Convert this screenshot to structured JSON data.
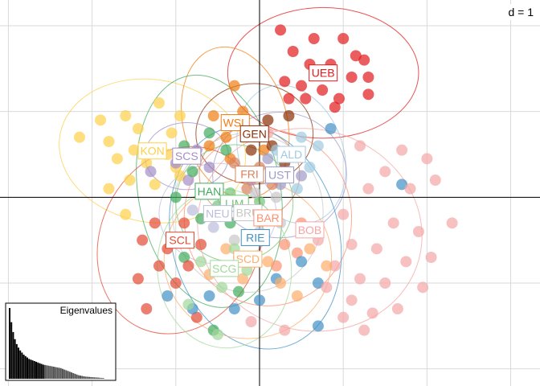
{
  "chart_data": {
    "type": "scatter",
    "title": "",
    "xlabel": "",
    "ylabel": "",
    "grid_label": "d = 1",
    "grid": true,
    "xlim": [
      -3.1,
      3.35
    ],
    "ylim": [
      -2.2,
      2.3
    ],
    "groups": [
      {
        "name": "UEB",
        "color": "#e31a1c",
        "centroid": [
          0.76,
          1.45
        ],
        "ellipse": {
          "rx": 1.14,
          "ry": 0.78,
          "angle": 0
        },
        "points": [
          [
            0.25,
            1.95
          ],
          [
            0.65,
            1.85
          ],
          [
            1.0,
            1.85
          ],
          [
            1.15,
            1.65
          ],
          [
            1.25,
            1.6
          ],
          [
            0.4,
            1.7
          ],
          [
            0.6,
            1.55
          ],
          [
            0.85,
            1.55
          ],
          [
            1.1,
            1.4
          ],
          [
            1.3,
            1.4
          ],
          [
            0.3,
            1.35
          ],
          [
            0.5,
            1.3
          ],
          [
            0.75,
            1.25
          ],
          [
            0.95,
            1.15
          ],
          [
            1.3,
            1.2
          ],
          [
            0.35,
            1.15
          ],
          [
            0.55,
            1.15
          ],
          [
            0.9,
            1.05
          ]
        ]
      },
      {
        "name": "KON",
        "color": "#fdd049",
        "centroid": [
          -1.28,
          0.54
        ],
        "ellipse": {
          "rx": 1.12,
          "ry": 0.85,
          "angle": -10
        },
        "points": [
          [
            -1.9,
            0.9
          ],
          [
            -1.6,
            0.95
          ],
          [
            -1.2,
            1.1
          ],
          [
            -2.15,
            0.7
          ],
          [
            -1.8,
            0.65
          ],
          [
            -1.45,
            0.8
          ],
          [
            -1.05,
            0.75
          ],
          [
            -0.95,
            0.95
          ],
          [
            -1.7,
            0.45
          ],
          [
            -1.35,
            0.4
          ],
          [
            -1.1,
            0.5
          ],
          [
            -1.55,
            0.2
          ],
          [
            -1.25,
            0.15
          ],
          [
            -0.95,
            0.25
          ],
          [
            -1.8,
            0.1
          ],
          [
            -1.0,
            0.35
          ],
          [
            -1.5,
            0.55
          ],
          [
            -1.6,
            -0.2
          ]
        ]
      },
      {
        "name": "WSL",
        "color": "#f07e13",
        "centroid": [
          -0.29,
          0.87
        ],
        "ellipse": {
          "rx": 0.62,
          "ry": 0.92,
          "angle": 15
        },
        "points": [
          [
            -0.3,
            1.3
          ],
          [
            -0.55,
            0.95
          ],
          [
            -0.2,
            1.0
          ],
          [
            -0.4,
            0.7
          ],
          [
            -0.1,
            0.75
          ],
          [
            -0.35,
            0.45
          ],
          [
            -0.6,
            0.6
          ],
          [
            0.05,
            0.55
          ]
        ]
      },
      {
        "name": "GEN",
        "color": "#8c2d04",
        "centroid": [
          -0.06,
          0.74
        ],
        "ellipse": {
          "rx": 0.7,
          "ry": 0.6,
          "angle": 0
        },
        "points": [
          [
            -0.25,
            0.85
          ],
          [
            0.1,
            0.9
          ],
          [
            0.35,
            0.95
          ],
          [
            -0.1,
            0.55
          ],
          [
            0.15,
            0.6
          ],
          [
            0.3,
            0.4
          ]
        ]
      },
      {
        "name": "SCS",
        "color": "#a48fc7",
        "centroid": [
          -0.87,
          0.48
        ],
        "ellipse": {
          "rx": 0.5,
          "ry": 0.4,
          "angle": 0
        },
        "points": [
          [
            -1.3,
            0.3
          ],
          [
            -1.0,
            0.4
          ],
          [
            -0.75,
            0.55
          ],
          [
            -0.85,
            0.2
          ],
          [
            -0.6,
            0.35
          ]
        ]
      },
      {
        "name": "ALD",
        "color": "#9ecae1",
        "centroid": [
          0.38,
          0.5
        ],
        "ellipse": {
          "rx": 0.62,
          "ry": 0.85,
          "angle": 20
        },
        "points": [
          [
            0.5,
            0.7
          ],
          [
            0.7,
            0.6
          ],
          [
            0.2,
            0.55
          ],
          [
            0.35,
            0.3
          ],
          [
            0.6,
            0.35
          ],
          [
            0.45,
            0.1
          ]
        ]
      },
      {
        "name": "UST",
        "color": "#9e9ac8",
        "centroid": [
          0.24,
          0.26
        ],
        "ellipse": {
          "rx": 0.8,
          "ry": 0.75,
          "angle": 0
        },
        "points": [
          [
            0.1,
            0.45
          ],
          [
            0.4,
            0.5
          ],
          [
            0.25,
            0.15
          ],
          [
            -0.1,
            0.2
          ],
          [
            0.5,
            0.25
          ]
        ]
      },
      {
        "name": "FRI",
        "color": "#d9825b",
        "centroid": [
          -0.12,
          0.27
        ],
        "ellipse": {
          "rx": 0.6,
          "ry": 0.55,
          "angle": 0
        },
        "points": [
          [
            -0.3,
            0.4
          ],
          [
            0.0,
            0.35
          ],
          [
            -0.15,
            0.1
          ],
          [
            0.15,
            0.15
          ]
        ]
      },
      {
        "name": "HAN",
        "color": "#41ab5d",
        "centroid": [
          -0.6,
          0.07
        ],
        "ellipse": {
          "rx": 0.85,
          "ry": 1.4,
          "angle": 10
        },
        "points": [
          [
            -0.9,
            0.6
          ],
          [
            -0.6,
            0.75
          ],
          [
            -0.4,
            0.55
          ],
          [
            -0.8,
            0.3
          ],
          [
            -0.5,
            0.1
          ],
          [
            -0.2,
            0.25
          ],
          [
            -1.0,
            0.0
          ],
          [
            -0.7,
            -0.25
          ],
          [
            -0.35,
            -0.3
          ],
          [
            -0.9,
            -0.7
          ],
          [
            -0.5,
            -0.85
          ],
          [
            -0.25,
            -1.1
          ],
          [
            -0.55,
            -1.55
          ]
        ]
      },
      {
        "name": "LIM",
        "color": "#74c476",
        "centroid": [
          -0.3,
          -0.07
        ],
        "ellipse": {
          "rx": 0.7,
          "ry": 0.7,
          "angle": 0
        },
        "points": [
          [
            -0.5,
            -0.1
          ],
          [
            -0.2,
            -0.2
          ],
          [
            -0.35,
            0.05
          ],
          [
            0.0,
            -0.05
          ]
        ]
      },
      {
        "name": "NEU",
        "color": "#bcbddc",
        "centroid": [
          -0.5,
          -0.19
        ],
        "ellipse": {
          "rx": 0.7,
          "ry": 0.6,
          "angle": 0
        },
        "points": [
          [
            -0.8,
            -0.15
          ],
          [
            -0.55,
            -0.35
          ],
          [
            -0.3,
            -0.1
          ],
          [
            -0.6,
            0.05
          ]
        ]
      },
      {
        "name": "BRU",
        "color": "#c7c7c7",
        "centroid": [
          -0.14,
          -0.18
        ],
        "ellipse": {
          "rx": 0.9,
          "ry": 0.95,
          "angle": 0
        },
        "points": [
          [
            0.0,
            -0.4
          ],
          [
            -0.3,
            -0.5
          ],
          [
            0.25,
            -0.3
          ],
          [
            -0.05,
            0.05
          ],
          [
            0.2,
            0.0
          ],
          [
            -0.25,
            -0.7
          ]
        ]
      },
      {
        "name": "BAR",
        "color": "#fc9272",
        "centroid": [
          0.1,
          -0.24
        ],
        "ellipse": {
          "rx": 1.0,
          "ry": 1.05,
          "angle": 0
        },
        "points": [
          [
            0.3,
            -0.55
          ],
          [
            0.5,
            -0.3
          ],
          [
            -0.1,
            -0.5
          ],
          [
            0.2,
            -0.8
          ],
          [
            0.45,
            -0.65
          ]
        ]
      },
      {
        "name": "SCL",
        "color": "#e34a33",
        "centroid": [
          -0.95,
          -0.5
        ],
        "ellipse": {
          "rx": 0.95,
          "ry": 1.15,
          "angle": -25
        },
        "points": [
          [
            -1.4,
            -0.5
          ],
          [
            -1.2,
            -0.8
          ],
          [
            -1.45,
            -0.95
          ],
          [
            -1.1,
            -0.6
          ],
          [
            -0.85,
            -0.8
          ],
          [
            -1.25,
            -0.3
          ],
          [
            -0.9,
            -0.3
          ],
          [
            -0.7,
            -0.55
          ],
          [
            -1.0,
            -1.0
          ],
          [
            -1.35,
            -1.3
          ],
          [
            -0.75,
            -1.4
          ]
        ]
      },
      {
        "name": "RIE",
        "color": "#4292c6",
        "centroid": [
          -0.05,
          -0.47
        ],
        "ellipse": {
          "rx": 1.0,
          "ry": 1.35,
          "angle": 15
        },
        "points": [
          [
            -0.6,
            -1.15
          ],
          [
            -0.3,
            -1.3
          ],
          [
            0.0,
            -1.2
          ],
          [
            0.2,
            -0.95
          ],
          [
            0.5,
            -0.75
          ],
          [
            0.7,
            -1.0
          ],
          [
            -1.1,
            -1.15
          ],
          [
            0.85,
            0.8
          ],
          [
            1.7,
            0.15
          ],
          [
            0.7,
            -1.5
          ],
          [
            -0.8,
            -1.3
          ]
        ]
      },
      {
        "name": "BOB",
        "color": "#f4a6a6",
        "centroid": [
          0.6,
          -0.38
        ],
        "ellipse": {
          "rx": 1.35,
          "ry": 1.2,
          "angle": -15
        },
        "points": [
          [
            1.2,
            0.6
          ],
          [
            1.5,
            0.3
          ],
          [
            1.8,
            0.1
          ],
          [
            2.1,
            0.2
          ],
          [
            1.3,
            0.1
          ],
          [
            1.0,
            -0.2
          ],
          [
            1.6,
            -0.3
          ],
          [
            1.9,
            -0.4
          ],
          [
            2.3,
            -0.3
          ],
          [
            1.1,
            -0.55
          ],
          [
            1.4,
            -0.6
          ],
          [
            1.75,
            -0.75
          ],
          [
            2.05,
            -0.7
          ],
          [
            0.9,
            -0.8
          ],
          [
            1.2,
            -0.95
          ],
          [
            1.5,
            -1.0
          ],
          [
            1.95,
            -1.05
          ],
          [
            1.1,
            -1.2
          ],
          [
            1.35,
            -1.35
          ],
          [
            1.65,
            -1.3
          ],
          [
            0.8,
            -1.05
          ],
          [
            1.0,
            -1.4
          ],
          [
            1.25,
            -1.55
          ],
          [
            0.7,
            -0.5
          ],
          [
            2.0,
            0.45
          ],
          [
            1.7,
            0.55
          ],
          [
            0.3,
            -1.55
          ],
          [
            -0.1,
            -1.45
          ],
          [
            0.1,
            0.75
          ],
          [
            -0.25,
            0.85
          ]
        ]
      },
      {
        "name": "SCD",
        "color": "#fdae6b",
        "centroid": [
          -0.14,
          -0.72
        ],
        "ellipse": {
          "rx": 1.0,
          "ry": 0.95,
          "angle": 0
        },
        "points": [
          [
            -0.4,
            -0.6
          ],
          [
            0.1,
            -0.75
          ],
          [
            -0.2,
            -0.95
          ],
          [
            0.25,
            -1.0
          ],
          [
            0.6,
            -0.6
          ],
          [
            0.8,
            -0.8
          ],
          [
            -0.6,
            -0.9
          ],
          [
            0.45,
            -1.15
          ]
        ]
      },
      {
        "name": "SCG",
        "color": "#a1d99b",
        "centroid": [
          -0.42,
          -0.83
        ],
        "ellipse": {
          "rx": 0.8,
          "ry": 0.95,
          "angle": 5
        },
        "points": [
          [
            -0.7,
            -0.75
          ],
          [
            -0.45,
            -1.05
          ],
          [
            -0.15,
            -0.85
          ],
          [
            -0.85,
            -1.25
          ],
          [
            -0.5,
            -1.6
          ],
          [
            -0.3,
            -0.6
          ]
        ]
      }
    ],
    "inset": {
      "title": "Eigenvalues",
      "values": [
        100,
        80,
        66,
        56,
        49,
        44,
        40,
        37,
        34,
        32,
        30,
        28,
        27,
        26,
        25,
        24,
        23,
        22,
        21,
        20,
        19.5,
        19,
        18.5,
        18,
        17.5,
        17,
        16.5,
        16,
        15.5,
        15,
        14,
        13,
        12,
        11,
        10,
        9,
        8,
        7,
        6,
        5,
        4.5,
        4,
        3.5,
        3,
        2.8,
        2.6,
        2.4,
        2.2,
        2,
        1.8,
        1.6,
        1.4,
        1.2,
        1
      ]
    }
  }
}
